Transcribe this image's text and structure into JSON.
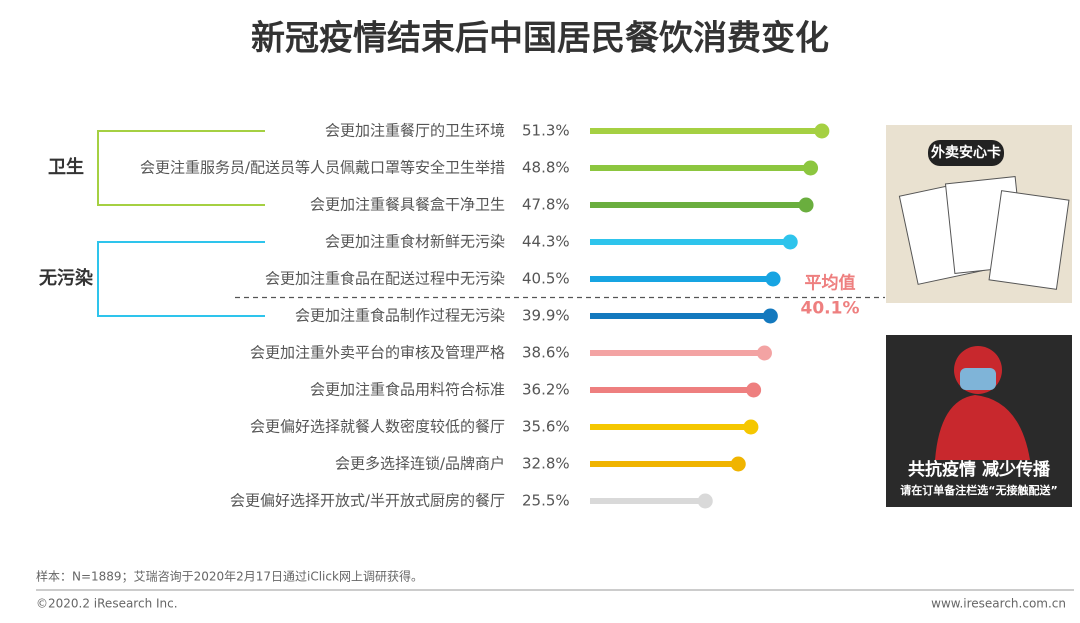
{
  "chart_data": {
    "type": "lollipop",
    "title": "新冠疫情结束后中国居民餐饮消费变化",
    "categories": [
      "会更加注重餐厅的卫生环境",
      "会更注重服务员/配送员等人员佩戴口罩等安全卫生举措",
      "会更加注重餐具餐盒干净卫生",
      "会更加注重食材新鲜无污染",
      "会更加注重食品在配送过程中无污染",
      "会更加注重食品制作过程无污染",
      "会更加注重外卖平台的审核及管理严格",
      "会更加注重食品用料符合标准",
      "会更偏好选择就餐人数密度较低的餐厅",
      "会更多选择连锁/品牌商户",
      "会更偏好选择开放式/半开放式厨房的餐厅"
    ],
    "values": [
      51.3,
      48.8,
      47.8,
      44.3,
      40.5,
      39.9,
      38.6,
      36.2,
      35.6,
      32.8,
      25.5
    ],
    "value_labels": [
      "51.3%",
      "48.8%",
      "47.8%",
      "44.3%",
      "40.5%",
      "39.9%",
      "38.6%",
      "36.2%",
      "35.6%",
      "32.8%",
      "25.5%"
    ],
    "colors": [
      "#a5d042",
      "#8cc63f",
      "#6aae3e",
      "#2ec4ec",
      "#17a4e2",
      "#1479be",
      "#f3a3a3",
      "#ee7f7f",
      "#f5c700",
      "#f0b400",
      "#d9d9d9"
    ],
    "groups": [
      {
        "name": "卫生",
        "size": 3,
        "color": "#a5d042"
      },
      {
        "name": "无污染",
        "size": 3,
        "color": "#2ec4ec"
      }
    ],
    "average": {
      "label": "平均值",
      "value": 40.1,
      "value_label": "40.1%",
      "color": "#ee7f7f"
    }
  },
  "images": [
    {
      "caption": "外卖安心卡"
    },
    {
      "caption": "共抗疫情 减少传播",
      "subcaption": "请在订单备注栏选“无接触配送”"
    }
  ],
  "footer": {
    "note": "样本：N=1889；艾瑞咨询于2020年2月17日通过iClick网上调研获得。",
    "copyright": "©2020.2 iResearch Inc.",
    "website": "www.iresearch.com.cn"
  }
}
